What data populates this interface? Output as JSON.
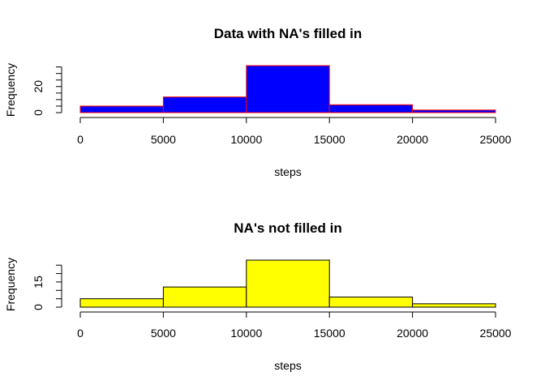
{
  "chart_data": [
    {
      "type": "bar",
      "title": "Data with NA's filled in",
      "xlabel": "steps",
      "ylabel": "Frequency",
      "bins": [
        [
          0,
          5000
        ],
        [
          5000,
          10000
        ],
        [
          10000,
          15000
        ],
        [
          15000,
          20000
        ],
        [
          20000,
          25000
        ]
      ],
      "values": [
        5,
        12,
        36,
        6,
        2
      ],
      "xlim": [
        0,
        25000
      ],
      "ylim": [
        0,
        36
      ],
      "xticks": [
        0,
        5000,
        10000,
        15000,
        20000,
        25000
      ],
      "xtick_labels": [
        "0",
        "5000",
        "10000",
        "15000",
        "20000",
        "25000"
      ],
      "yticks": [
        0,
        5,
        10,
        15,
        20,
        25,
        30,
        35
      ],
      "ytick_labels": [
        "0",
        "",
        "",
        "",
        "20",
        "",
        "",
        ""
      ],
      "fill_color": "#0000ff",
      "border_color": "#ff0000",
      "grid": false
    },
    {
      "type": "bar",
      "title": "NA's not filled in",
      "xlabel": "steps",
      "ylabel": "Frequency",
      "bins": [
        [
          0,
          5000
        ],
        [
          5000,
          10000
        ],
        [
          10000,
          15000
        ],
        [
          15000,
          20000
        ],
        [
          20000,
          25000
        ]
      ],
      "values": [
        5,
        12,
        28,
        6,
        2
      ],
      "xlim": [
        0,
        25000
      ],
      "ylim": [
        0,
        28
      ],
      "xticks": [
        0,
        5000,
        10000,
        15000,
        20000,
        25000
      ],
      "xtick_labels": [
        "0",
        "5000",
        "10000",
        "15000",
        "20000",
        "25000"
      ],
      "yticks": [
        0,
        5,
        10,
        15,
        20,
        25
      ],
      "ytick_labels": [
        "0",
        "",
        "",
        "15",
        "",
        ""
      ],
      "fill_color": "#ffff00",
      "border_color": "#000000",
      "grid": false
    }
  ]
}
